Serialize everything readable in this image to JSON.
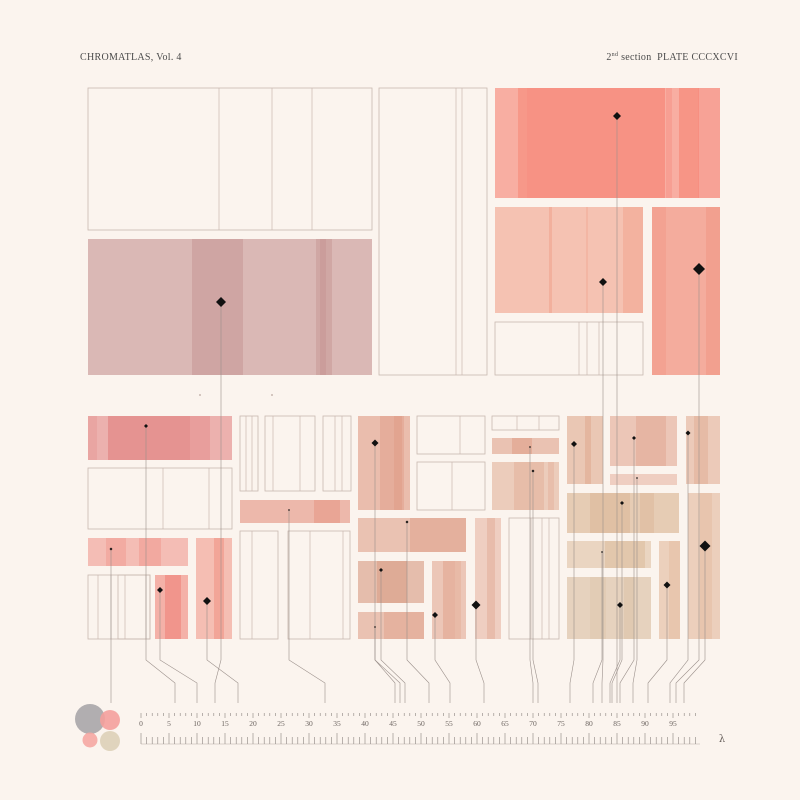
{
  "header": {
    "title": "CHROMATLAS, Vol. 4",
    "section_num": "2",
    "section_sup": "nd",
    "section_word": "section",
    "plate": "PLATE CCCXCVI"
  },
  "scale": {
    "labels": [
      "0",
      "5",
      "10",
      "15",
      "20",
      "25",
      "30",
      "35",
      "40",
      "45",
      "50",
      "55",
      "60",
      "65",
      "70",
      "75",
      "80",
      "85",
      "90",
      "95"
    ],
    "unit": "λ"
  },
  "legend_swatches": [
    {
      "color": "#a9a6a8"
    },
    {
      "color": "#f4a09c"
    },
    {
      "color": "#f5a7a2"
    },
    {
      "color": "#ddd0b7"
    }
  ],
  "colors": {
    "salmon": "#f67f6f",
    "peach": "#f1ab94",
    "mauve": "#d6b0ae",
    "rose": "#e07a7a",
    "sand": "#dfc0a0",
    "outline": "#c9b8b0",
    "paper": "#fbf4ee"
  }
}
